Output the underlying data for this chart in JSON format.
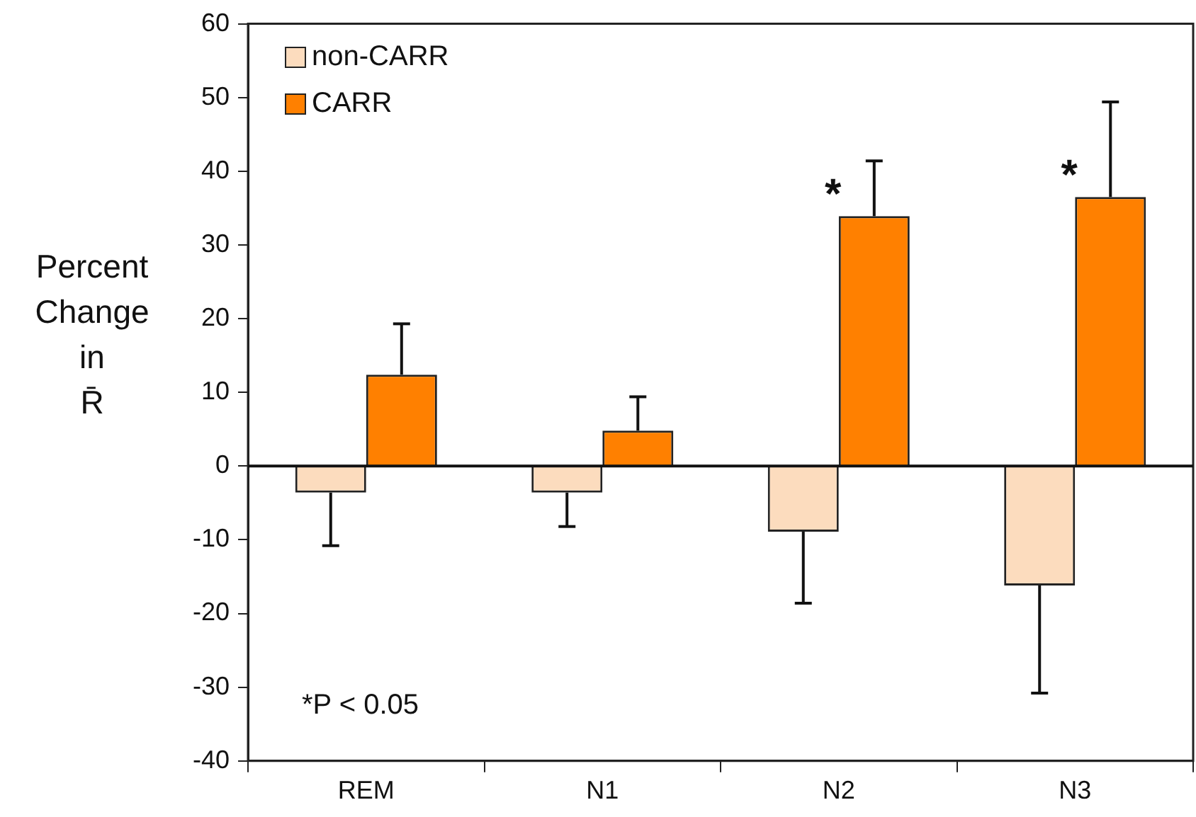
{
  "chart_data": {
    "type": "bar",
    "ylabel": "Percent Change in R̄",
    "categories": [
      "REM",
      "N1",
      "N2",
      "N3"
    ],
    "series": [
      {
        "name": "non-CARR",
        "color": "#fcdcbe",
        "values": [
          -3.6,
          -3.6,
          -8.9,
          -16.2
        ],
        "errors": [
          [
            -10.8,
            -3.6
          ],
          [
            -8.2,
            -3.6
          ],
          [
            -18.6,
            -8.9
          ],
          [
            -30.8,
            -16.2
          ]
        ]
      },
      {
        "name": "CARR",
        "color": "#ff8000",
        "values": [
          12.4,
          4.8,
          33.9,
          36.5
        ],
        "errors": [
          [
            12.4,
            19.3
          ],
          [
            4.8,
            9.4
          ],
          [
            33.9,
            41.4
          ],
          [
            36.5,
            49.4
          ]
        ]
      }
    ],
    "ylim": [
      -40,
      60
    ],
    "yticks": [
      -40,
      -30,
      -20,
      -10,
      0,
      10,
      20,
      30,
      40,
      50,
      60
    ],
    "grid": false,
    "legend": "top left",
    "ref_lines": [
      {
        "axis": "y",
        "value": 0
      }
    ],
    "annotations": [
      {
        "text": "*",
        "x": "N2",
        "y": 33.9
      },
      {
        "text": "*",
        "x": "N3",
        "y": 36.5
      },
      "*P < 0.05"
    ]
  }
}
